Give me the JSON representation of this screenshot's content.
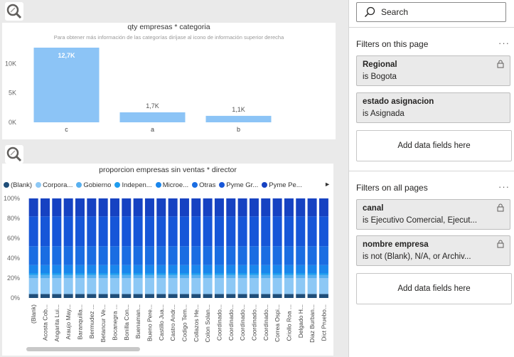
{
  "charts": {
    "chart1": {
      "title": "qty empresas * categoria",
      "subtitle": "Para obtener más información de las categorías diríjase al icono de información superior derecha"
    },
    "chart2": {
      "title": "proporcion empresas sin ventas * director",
      "legend_more": "►"
    }
  },
  "chart_data": [
    {
      "type": "bar",
      "title": "qty empresas * categoria",
      "categories": [
        "c",
        "a",
        "b"
      ],
      "values": [
        12700,
        1700,
        1100
      ],
      "data_labels": [
        "12,7K",
        "1,7K",
        "1,1K"
      ],
      "ylim": [
        0,
        12700
      ],
      "y_ticks": [
        0,
        5000,
        10000
      ],
      "y_tick_labels": [
        "0K",
        "5K",
        "10K"
      ],
      "bar_color": "#8cc4f6",
      "grid": false
    },
    {
      "type": "bar",
      "stacked": "100%",
      "title": "proporcion empresas sin ventas * director",
      "legend_position": "top",
      "categories": [
        "(Blank)",
        "Acosta Cob...",
        "Angarita Lui...",
        "Araujo May...",
        "Baranquilla...",
        "Bermudez ...",
        "Betancur Ve...",
        "Bocanegra ...",
        "Bonilla Con...",
        "Buenaman...",
        "Bueno Pere...",
        "Castillo Jua...",
        "Castro Andr...",
        "Codigo Tem...",
        "Collazos He...",
        "Colon Solan...",
        "Coordinado...",
        "Coordinado...",
        "Coordinado...",
        "Coordinado...",
        "Coordinado...",
        "Correa Ospi...",
        "Criollo Roa ...",
        "Delgado H...",
        "Diaz Burban...",
        "Dict Pruebo..."
      ],
      "series": [
        {
          "name": "(Blank)",
          "color": "#1f4e79",
          "values": [
            0.04,
            0.04,
            0.04,
            0.04,
            0.04,
            0.04,
            0.04,
            0.04,
            0.04,
            0.04,
            0.04,
            0.04,
            0.04,
            0.04,
            0.04,
            0.04,
            0.04,
            0.04,
            0.04,
            0.04,
            0.04,
            0.04,
            0.04,
            0.04,
            0.04,
            0.04
          ]
        },
        {
          "name": "Corpora...",
          "color": "#8dc8f5",
          "values": [
            0.16,
            0.16,
            0.16,
            0.16,
            0.16,
            0.16,
            0.16,
            0.16,
            0.16,
            0.16,
            0.16,
            0.16,
            0.16,
            0.16,
            0.16,
            0.16,
            0.16,
            0.16,
            0.16,
            0.16,
            0.16,
            0.16,
            0.16,
            0.16,
            0.16,
            0.16
          ]
        },
        {
          "name": "Gobierno",
          "color": "#58b0ef",
          "values": [
            0.03,
            0.03,
            0.03,
            0.03,
            0.03,
            0.03,
            0.03,
            0.03,
            0.03,
            0.03,
            0.03,
            0.03,
            0.03,
            0.03,
            0.03,
            0.03,
            0.03,
            0.03,
            0.03,
            0.03,
            0.03,
            0.03,
            0.03,
            0.03,
            0.03,
            0.03
          ]
        },
        {
          "name": "Indepen...",
          "color": "#1e9cee",
          "values": [
            0.02,
            0.02,
            0.02,
            0.02,
            0.02,
            0.02,
            0.02,
            0.02,
            0.02,
            0.02,
            0.02,
            0.02,
            0.02,
            0.02,
            0.02,
            0.02,
            0.02,
            0.02,
            0.02,
            0.02,
            0.02,
            0.02,
            0.02,
            0.02,
            0.02,
            0.02
          ]
        },
        {
          "name": "Microe...",
          "color": "#1a86ec",
          "values": [
            0.08,
            0.08,
            0.08,
            0.08,
            0.08,
            0.08,
            0.08,
            0.08,
            0.08,
            0.08,
            0.08,
            0.08,
            0.08,
            0.08,
            0.08,
            0.08,
            0.08,
            0.08,
            0.08,
            0.08,
            0.08,
            0.08,
            0.08,
            0.08,
            0.08,
            0.08
          ]
        },
        {
          "name": "Otras",
          "color": "#1a6de2",
          "values": [
            0.19,
            0.19,
            0.19,
            0.19,
            0.19,
            0.19,
            0.19,
            0.19,
            0.19,
            0.19,
            0.19,
            0.19,
            0.19,
            0.19,
            0.19,
            0.19,
            0.19,
            0.19,
            0.19,
            0.19,
            0.19,
            0.19,
            0.19,
            0.19,
            0.19,
            0.19
          ]
        },
        {
          "name": "Pyme Gr...",
          "color": "#1656d8",
          "values": [
            0.3,
            0.3,
            0.3,
            0.3,
            0.3,
            0.3,
            0.3,
            0.3,
            0.3,
            0.3,
            0.3,
            0.3,
            0.3,
            0.3,
            0.3,
            0.3,
            0.3,
            0.3,
            0.3,
            0.3,
            0.3,
            0.3,
            0.3,
            0.3,
            0.3,
            0.3
          ]
        },
        {
          "name": "Pyme Pe...",
          "color": "#1642c2",
          "values": [
            0.18,
            0.18,
            0.18,
            0.18,
            0.18,
            0.18,
            0.18,
            0.18,
            0.18,
            0.18,
            0.18,
            0.18,
            0.18,
            0.18,
            0.18,
            0.18,
            0.18,
            0.18,
            0.18,
            0.18,
            0.18,
            0.18,
            0.18,
            0.18,
            0.18,
            0.18
          ]
        }
      ],
      "ylim": [
        0,
        1
      ],
      "y_ticks": [
        0,
        0.2,
        0.4,
        0.6,
        0.8,
        1.0
      ],
      "y_tick_labels": [
        "0%",
        "20%",
        "40%",
        "60%",
        "80%",
        "100%"
      ],
      "grid": false
    }
  ],
  "filter_pane": {
    "search_placeholder": "Search",
    "page_section_label": "Filters on this page",
    "all_section_label": "Filters on all pages",
    "more_label": "···",
    "add_fields_label": "Add data fields here",
    "page_filters": [
      {
        "title": "Regional",
        "value": "is Bogota"
      },
      {
        "title": "estado asignacion",
        "value": "is Asignada"
      }
    ],
    "all_filters": [
      {
        "title": "canal",
        "value": "is Ejecutivo Comercial, Ejecut..."
      },
      {
        "title": "nombre empresa",
        "value": "is not (Blank), N/A, or Archiv..."
      }
    ]
  },
  "icons": {
    "focus": "magnify-focus-icon",
    "search": "search-icon",
    "lock": "lock-icon",
    "more": "more-options-icon",
    "legend_next": "chevron-right-icon"
  }
}
